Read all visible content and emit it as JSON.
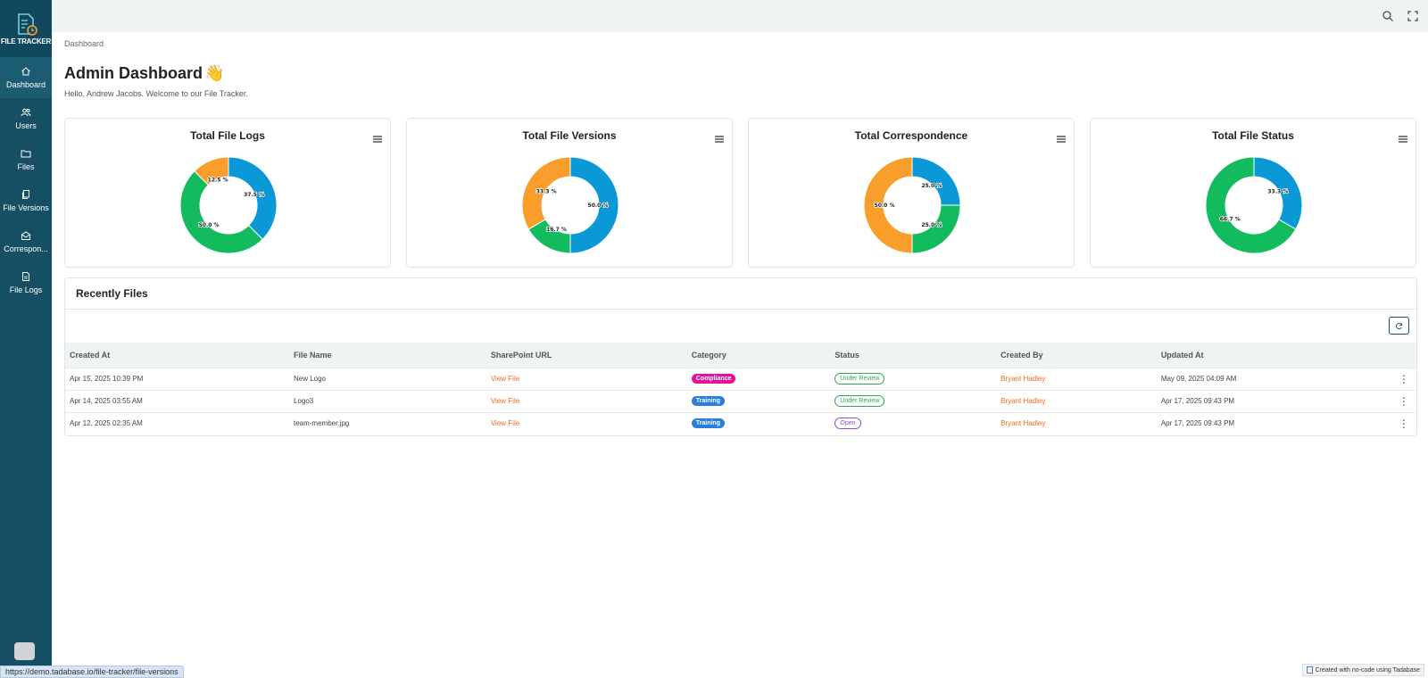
{
  "app": {
    "logo_text": "FILE TRACKER"
  },
  "sidebar": {
    "items": [
      {
        "label": "Dashboard",
        "icon": "home-icon",
        "active": true
      },
      {
        "label": "Users",
        "icon": "users-icon",
        "active": false
      },
      {
        "label": "Files",
        "icon": "folder-icon",
        "active": false
      },
      {
        "label": "File Versions",
        "icon": "copy-icon",
        "active": false
      },
      {
        "label": "Correspon...",
        "icon": "mail-icon",
        "active": false
      },
      {
        "label": "File Logs",
        "icon": "file-icon",
        "active": false
      }
    ]
  },
  "topbar": {
    "icons": [
      "search-icon",
      "fullscreen-icon"
    ]
  },
  "page": {
    "breadcrumb": "Dashboard",
    "title": "Admin Dashboard",
    "title_emoji": "👋",
    "subtitle": "Hello, Andrew Jacobs. Welcome to our File Tracker."
  },
  "chart_data": [
    {
      "type": "pie",
      "title": "Total File Logs",
      "slices": [
        {
          "label": "37.5 %",
          "value": 37.5,
          "color": "#0a98d6"
        },
        {
          "label": "50.0 %",
          "value": 50.0,
          "color": "#12bb5d"
        },
        {
          "label": "12.5 %",
          "value": 12.5,
          "color": "#f99e2b"
        }
      ]
    },
    {
      "type": "pie",
      "title": "Total File Versions",
      "slices": [
        {
          "label": "50.0 %",
          "value": 50.0,
          "color": "#0a98d6"
        },
        {
          "label": "16.7 %",
          "value": 16.7,
          "color": "#12bb5d"
        },
        {
          "label": "33.3 %",
          "value": 33.3,
          "color": "#f99e2b"
        }
      ]
    },
    {
      "type": "pie",
      "title": "Total Correspondence",
      "slices": [
        {
          "label": "25.0 %",
          "value": 25.0,
          "color": "#0a98d6"
        },
        {
          "label": "25.0 %",
          "value": 25.0,
          "color": "#12bb5d"
        },
        {
          "label": "50.0 %",
          "value": 50.0,
          "color": "#f99e2b"
        }
      ]
    },
    {
      "type": "pie",
      "title": "Total File Status",
      "slices": [
        {
          "label": "33.3 %",
          "value": 33.3,
          "color": "#0a98d6"
        },
        {
          "label": "66.7 %",
          "value": 66.7,
          "color": "#12bb5d"
        }
      ]
    }
  ],
  "recent_files": {
    "title": "Recently Files",
    "columns": [
      "Created At",
      "File Name",
      "SharePoint URL",
      "Category",
      "Status",
      "Created By",
      "Updated At"
    ],
    "rows": [
      {
        "created_at": "Apr 15, 2025 10:39 PM",
        "file_name": "New Logo",
        "url_label": "View File",
        "category": "Compliance",
        "category_color": "#e6119b",
        "status": "Under Review",
        "status_color": "#2fa84f",
        "created_by": "Bryant Hadley",
        "updated_at": "May 09, 2025 04:09 AM"
      },
      {
        "created_at": "Apr 14, 2025 03:55 AM",
        "file_name": "Logo3",
        "url_label": "View File",
        "category": "Training",
        "category_color": "#2a7de1",
        "status": "Under Review",
        "status_color": "#2fa84f",
        "created_by": "Bryant Hadley",
        "updated_at": "Apr 17, 2025 09:43 PM"
      },
      {
        "created_at": "Apr 12, 2025 02:35 AM",
        "file_name": "team-member.jpg",
        "url_label": "View File",
        "category": "Training",
        "category_color": "#2a7de1",
        "status": "Open",
        "status_color": "#8a4fd0",
        "created_by": "Bryant Hadley",
        "updated_at": "Apr 17, 2025 09:43 PM"
      }
    ]
  },
  "footer": {
    "status_url": "https://demo.tadabase.io/file-tracker/file-versions",
    "badge_text": "Created with no-code using Tadabase"
  }
}
